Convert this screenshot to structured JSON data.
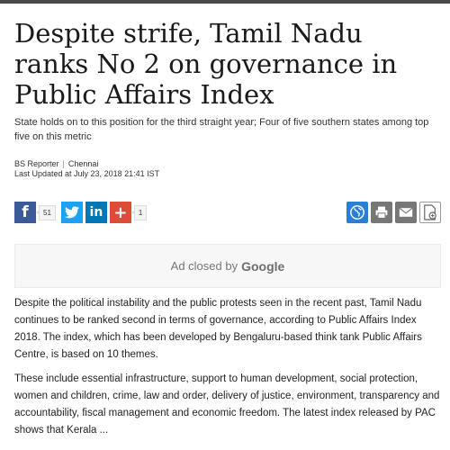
{
  "article": {
    "headline": "Despite strife, Tamil Nadu ranks No 2 on governance in Public Affairs Index",
    "subhead": "State holds on to this position for the third straight year; Four of five southern states among top five on this metric",
    "byline": {
      "author": "BS Reporter",
      "separator": "|",
      "location": "Chennai",
      "updated": "Last Updated at July 23, 2018 21:41 IST"
    },
    "paragraphs": [
      "Despite the political instability and the public protests seen in the recent past, Tamil Nadu continues to be ranked second in terms of governance, according to Public Affairs Index 2018. The index, which has been developed by Bengaluru-based think tank Public Affairs Centre, is based on 10 themes.",
      "These include essential infrastructure, support to human development, social protection, women and children, crime, law and order, delivery of justice, environment, transparency and accountability, fiscal management and economic freedom. The latest index released by PAC shows that Kerala ..."
    ]
  },
  "share": {
    "facebook_glyph": "f",
    "facebook_count": "51",
    "linkedin_glyph": "in",
    "plus_glyph": "+",
    "plus_count": "1",
    "icons": [
      "facebook-icon",
      "twitter-icon",
      "linkedin-icon",
      "google-plus-icon"
    ]
  },
  "tools": {
    "icons": [
      "globe-icon",
      "print-icon",
      "email-icon",
      "save-article-icon"
    ]
  },
  "ad": {
    "text": "Ad closed by",
    "brand": "Google"
  },
  "colors": {
    "facebook": "#3b5998",
    "twitter": "#1da1f2",
    "linkedin": "#0077b5",
    "google_plus": "#dd4b39",
    "tool_blue": "#2a7fd4",
    "tool_gray": "#777777"
  }
}
